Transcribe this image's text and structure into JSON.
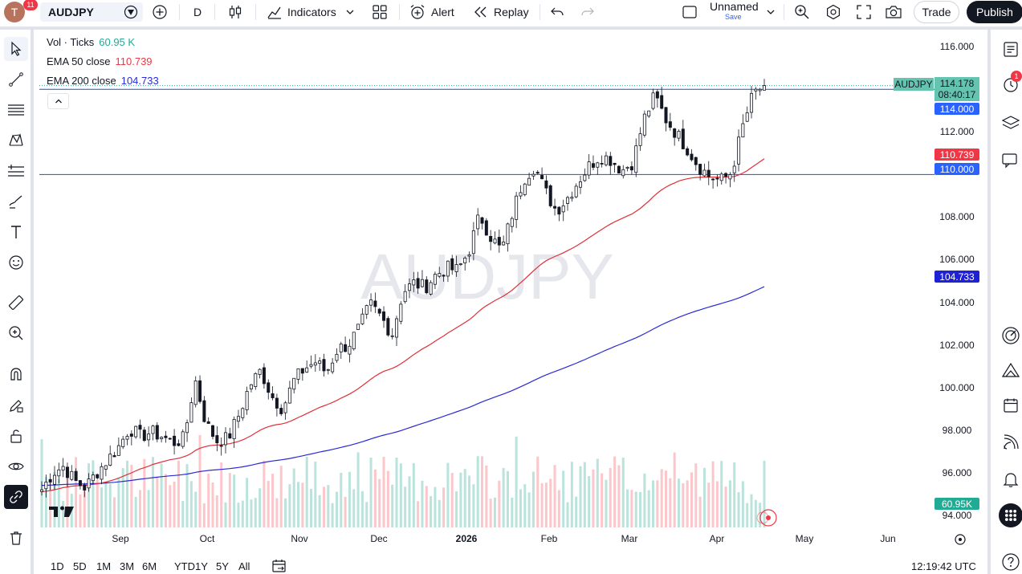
{
  "topbar": {
    "avatar_letter": "T",
    "avatar_badge": "11",
    "symbol": "AUDJPY",
    "interval": "D",
    "indicators_label": "Indicators",
    "alert_label": "Alert",
    "replay_label": "Replay",
    "layout_name": "Unnamed",
    "layout_save": "Save",
    "trade_label": "Trade",
    "publish_label": "Publish"
  },
  "legend": {
    "vol_label": "Vol · Ticks",
    "vol_value": "60.95 K",
    "ema50_label": "EMA 50 close",
    "ema50_value": "110.739",
    "ema200_label": "EMA 200 close",
    "ema200_value": "104.733"
  },
  "watermark": "AUDJPY",
  "price_labels": {
    "symbol_tag": "AUDJPY",
    "last_price": "114.178",
    "countdown": "08:40:17",
    "level_high": "114.000",
    "ema50": "110.739",
    "level_low": "110.000",
    "ema200": "104.733",
    "volume": "60.95K"
  },
  "price_ticks": [
    "116.000",
    "112.000",
    "108.000",
    "106.000",
    "104.000",
    "102.000",
    "100.000",
    "98.000",
    "96.000",
    "94.000"
  ],
  "time_ticks": [
    "Sep",
    "Oct",
    "Nov",
    "Dec",
    "2026",
    "Feb",
    "Mar",
    "Apr",
    "May",
    "Jun"
  ],
  "bottom": {
    "timeframes": [
      "1D",
      "5D",
      "1M",
      "3M",
      "6M",
      "YTD",
      "1Y",
      "5Y",
      "All"
    ],
    "clock": "12:19:42 UTC"
  },
  "right_badge": "1",
  "colors": {
    "up": "#089981",
    "down": "#f23645",
    "ema50": "#e0303a",
    "ema200": "#2a2ad6",
    "hline": "#2451c7",
    "label_blue": "#2962ff",
    "label_red": "#f23645",
    "label_navy": "#1e22d4",
    "label_teal": "#22ab94"
  },
  "chart_data": {
    "type": "candlestick",
    "symbol": "AUDJPY",
    "interval": "1D",
    "ylim": [
      93.5,
      116.5
    ],
    "x_labels": [
      "Sep",
      "Oct",
      "Nov",
      "Dec",
      "2026",
      "Feb",
      "Mar",
      "Apr",
      "May",
      "Jun"
    ],
    "horizontal_levels": [
      114.0,
      110.0
    ],
    "last_price": 114.178,
    "ema50_last": 110.739,
    "ema200_last": 104.733,
    "volume_last": "60.95K",
    "close_path_approx": [
      95.2,
      96.0,
      96.3,
      95.6,
      95.3,
      96.0,
      96.6,
      97.2,
      98.1,
      97.7,
      97.9,
      97.7,
      97.4,
      97.6,
      100.4,
      98.3,
      97.5,
      97.6,
      98.7,
      100.1,
      100.8,
      99.6,
      99.0,
      100.3,
      100.9,
      101.2,
      100.7,
      101.8,
      102.0,
      102.8,
      103.9,
      103.3,
      102.5,
      104.5,
      104.9,
      104.7,
      105.3,
      105.6,
      105.5,
      106.4,
      108.1,
      107.1,
      106.4,
      108.2,
      109.8,
      110.4,
      109.2,
      108.3,
      108.9,
      109.7,
      110.4,
      110.9,
      110.7,
      110.2,
      110.6,
      112.6,
      113.7,
      112.6,
      111.9,
      111.2,
      110.4,
      109.9,
      109.7,
      110.1,
      112.2,
      113.8,
      114.178
    ]
  }
}
